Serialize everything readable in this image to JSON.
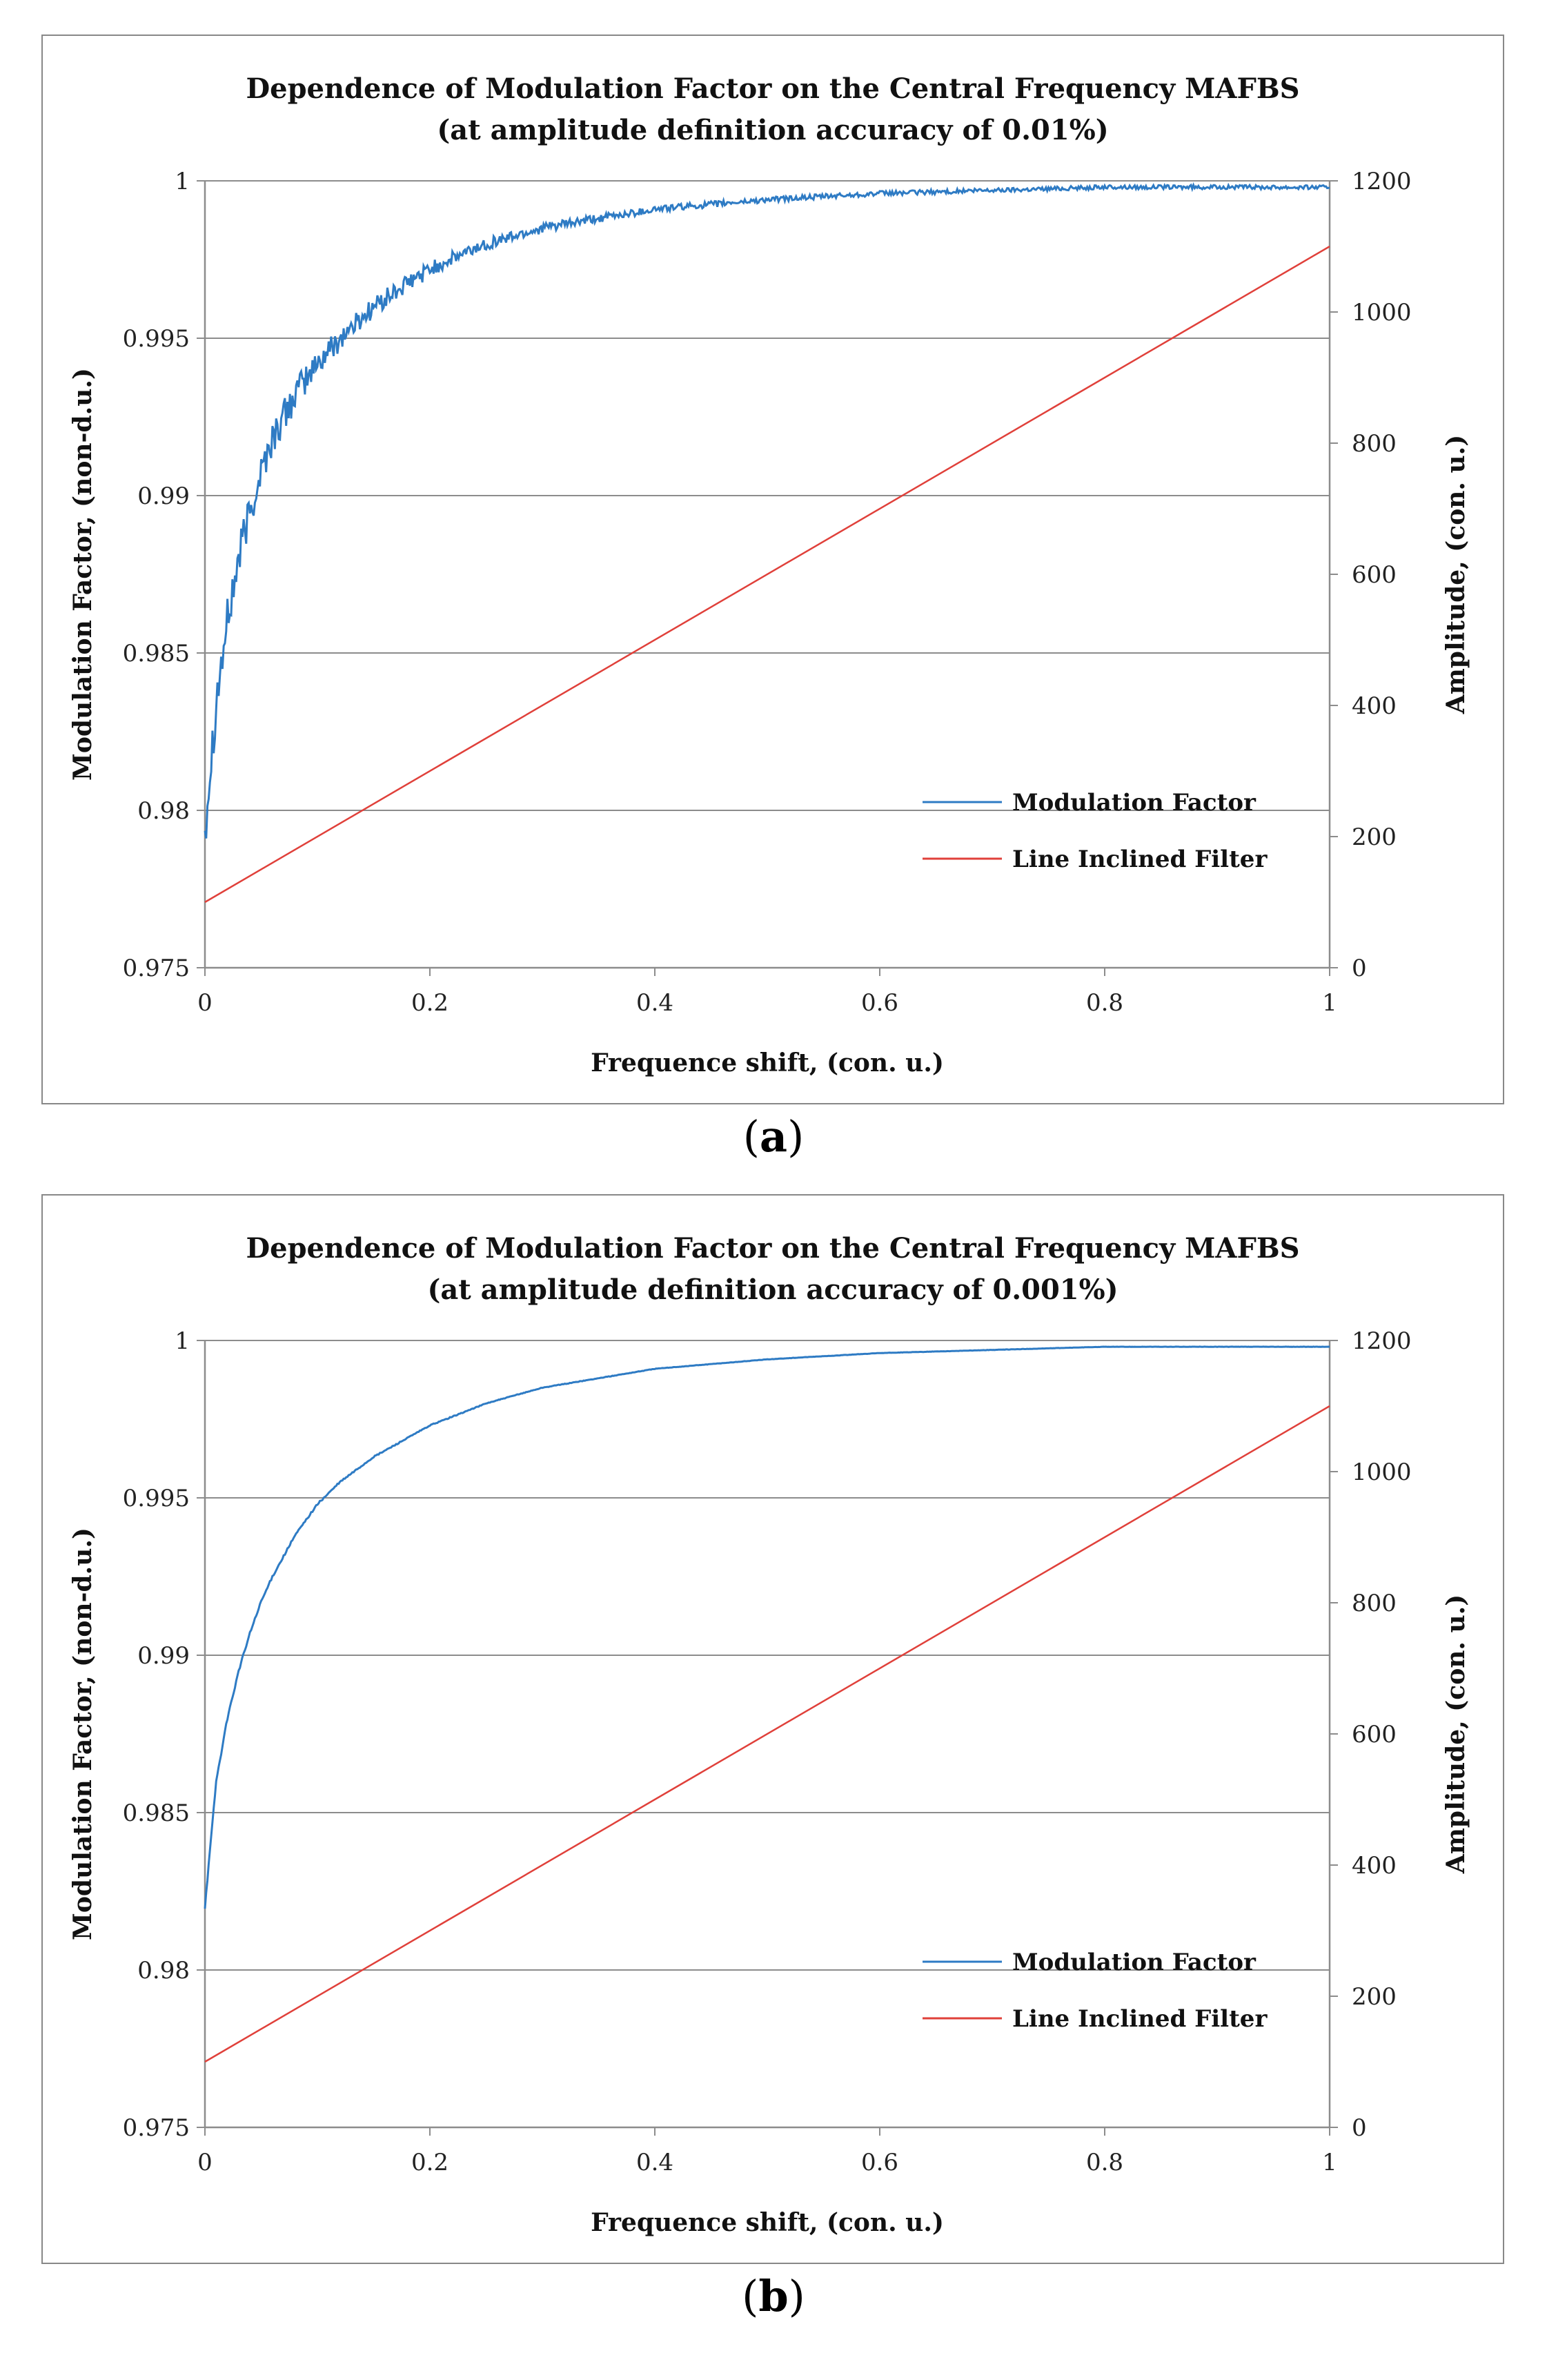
{
  "colors": {
    "modulation": "#2e7bc4",
    "filter": "#e0403a",
    "grid": "#8c8c8c",
    "axis": "#8c8c8c"
  },
  "chart_data": [
    {
      "panel_label": "a",
      "type": "line",
      "title_line1": "Dependence of Modulation Factor on the Central Frequency MAFBS",
      "title_line2": "(at amplitude definition accuracy of 0.01%)",
      "xlabel": "Frequence shift, (con. u.)",
      "ylabel": "Modulation Factor, (non-d.u.)",
      "y2label": "Amplitude, (con. u.)",
      "xlim": [
        0,
        1
      ],
      "ylim": [
        0.975,
        1
      ],
      "y2lim": [
        0,
        1200
      ],
      "x_ticks": [
        "0",
        "0.2",
        "0.4",
        "0.6",
        "0.8",
        "1"
      ],
      "y_ticks": [
        "0.975",
        "0.98",
        "0.985",
        "0.99",
        "0.995",
        "1"
      ],
      "y2_ticks": [
        "0",
        "200",
        "400",
        "600",
        "800",
        "1000",
        "1200"
      ],
      "legend_position": "bottom-right",
      "noise": 0.0008,
      "series": [
        {
          "name": "Modulation Factor",
          "axis": "left",
          "color": "#2e7bc4",
          "x": [
            0,
            0.005,
            0.01,
            0.02,
            0.03,
            0.04,
            0.05,
            0.06,
            0.08,
            0.1,
            0.12,
            0.15,
            0.2,
            0.25,
            0.3,
            0.35,
            0.4,
            0.5,
            0.6,
            0.7,
            0.8,
            0.9,
            1.0
          ],
          "values": [
            0.9795,
            0.9815,
            0.9835,
            0.986,
            0.988,
            0.9895,
            0.9908,
            0.9918,
            0.9932,
            0.9942,
            0.995,
            0.996,
            0.9972,
            0.998,
            0.9985,
            0.9988,
            0.9991,
            0.9994,
            0.9996,
            0.9997,
            0.9998,
            0.9998,
            0.9998
          ]
        },
        {
          "name": "Line Inclined Filter",
          "axis": "right",
          "color": "#e0403a",
          "x": [
            0,
            1
          ],
          "values": [
            100,
            1100
          ]
        }
      ]
    },
    {
      "panel_label": "b",
      "type": "line",
      "title_line1": "Dependence of Modulation Factor on the Central Frequency MAFBS",
      "title_line2": "(at amplitude definition accuracy of 0.001%)",
      "xlabel": "Frequence shift, (con. u.)",
      "ylabel": "Modulation Factor, (non-d.u.)",
      "y2label": "Amplitude, (con. u.)",
      "xlim": [
        0,
        1
      ],
      "ylim": [
        0.975,
        1
      ],
      "y2lim": [
        0,
        1200
      ],
      "x_ticks": [
        "0",
        "0.2",
        "0.4",
        "0.6",
        "0.8",
        "1"
      ],
      "y_ticks": [
        "0.975",
        "0.98",
        "0.985",
        "0.99",
        "0.995",
        "1"
      ],
      "y2_ticks": [
        "0",
        "200",
        "400",
        "600",
        "800",
        "1000",
        "1200"
      ],
      "legend_position": "bottom-right",
      "noise": 5e-05,
      "series": [
        {
          "name": "Modulation Factor",
          "axis": "left",
          "color": "#2e7bc4",
          "x": [
            0,
            0.005,
            0.01,
            0.02,
            0.03,
            0.04,
            0.05,
            0.06,
            0.08,
            0.1,
            0.12,
            0.15,
            0.2,
            0.25,
            0.3,
            0.35,
            0.4,
            0.5,
            0.6,
            0.7,
            0.8,
            0.9,
            1.0
          ],
          "values": [
            0.982,
            0.984,
            0.986,
            0.988,
            0.9895,
            0.9907,
            0.9917,
            0.9925,
            0.9938,
            0.9948,
            0.9955,
            0.9963,
            0.9973,
            0.998,
            0.9985,
            0.9988,
            0.9991,
            0.9994,
            0.9996,
            0.9997,
            0.9998,
            0.9998,
            0.9998
          ]
        },
        {
          "name": "Line Inclined Filter",
          "axis": "right",
          "color": "#e0403a",
          "x": [
            0,
            1
          ],
          "values": [
            100,
            1100
          ]
        }
      ]
    }
  ]
}
